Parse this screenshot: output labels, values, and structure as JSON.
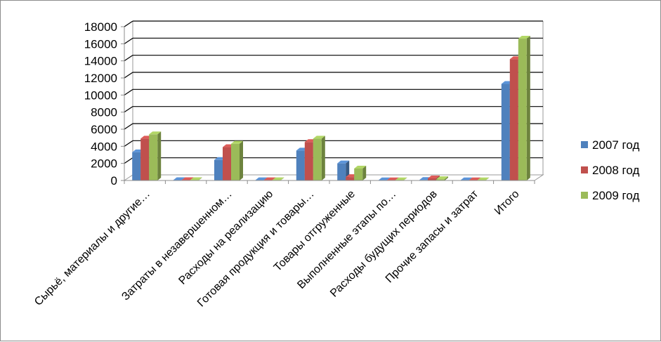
{
  "chart_data": {
    "type": "bar",
    "title": "",
    "xlabel": "",
    "ylabel": "",
    "ylim": [
      0,
      18000
    ],
    "yticks": [
      0,
      2000,
      4000,
      6000,
      8000,
      10000,
      12000,
      14000,
      16000,
      18000
    ],
    "grid": true,
    "legend_position": "right",
    "categories": [
      "Сырьё, материалы и другие…",
      "",
      "Затраты в незавершенном…",
      "Расходы на реализацию",
      "Готовая продукция и товары…",
      "Товары отгруженные",
      "Выполненные этапы по…",
      "Расходы будущих периодов",
      "Прочие запасы и затрат",
      "Итого"
    ],
    "series": [
      {
        "name": "2007 год",
        "color": "#4f81bd",
        "values": [
          3300,
          40,
          2400,
          30,
          3500,
          2000,
          20,
          60,
          20,
          11300
        ]
      },
      {
        "name": "2008 год",
        "color": "#c0504d",
        "values": [
          4900,
          40,
          3900,
          30,
          4500,
          400,
          20,
          250,
          20,
          14200
        ]
      },
      {
        "name": "2009 год",
        "color": "#9bbb59",
        "values": [
          5400,
          40,
          4300,
          30,
          4900,
          1400,
          20,
          150,
          20,
          16600
        ]
      }
    ]
  }
}
